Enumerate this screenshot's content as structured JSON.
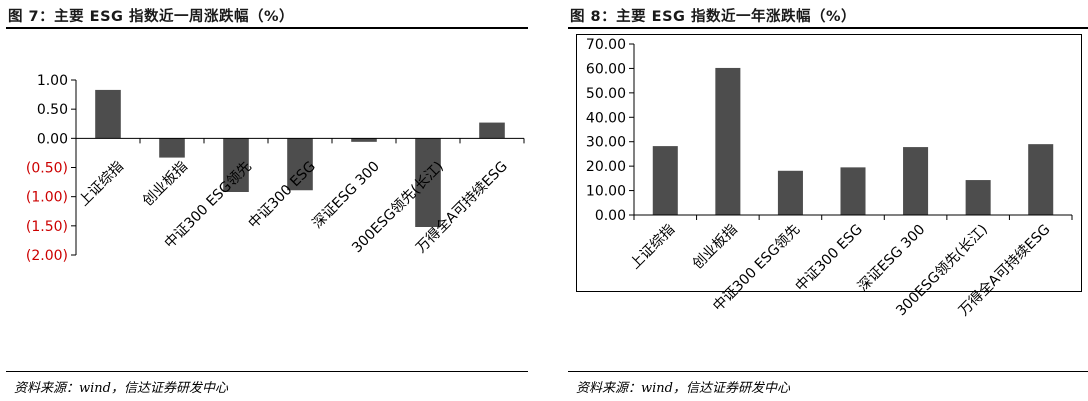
{
  "left": {
    "title": "图 7：主要 ESG 指数近一周涨跌幅（%）",
    "source": "资料来源：wind，信达证券研发中心"
  },
  "right": {
    "title": "图 8：主要 ESG 指数近一年涨跌幅（%）",
    "source": "资料来源：wind，信达证券研发中心"
  },
  "colors": {
    "bar": "#4d4d4d",
    "negative_tick": "#cc0000",
    "axis": "#000000"
  },
  "chart_data": [
    {
      "type": "bar",
      "title": "图 7：主要 ESG 指数近一周涨跌幅（%）",
      "categories": [
        "上证综指",
        "创业板指",
        "中证300 ESG领先",
        "中证300 ESG",
        "深证ESG 300",
        "300ESG领先(长江)",
        "万得全A可持续ESG"
      ],
      "values": [
        0.83,
        -0.33,
        -0.92,
        -0.89,
        -0.06,
        -1.52,
        0.27
      ],
      "ylim": [
        -2,
        1
      ],
      "yticks": [
        1,
        0.5,
        0,
        -0.5,
        -1,
        -1.5,
        -2
      ],
      "ytick_labels": [
        "1.00",
        "0.50",
        "0.00",
        "(0.50)",
        "(1.00)",
        "(1.50)",
        "(2.00)"
      ],
      "grid": false,
      "xlabel": "",
      "ylabel": ""
    },
    {
      "type": "bar",
      "title": "图 8：主要 ESG 指数近一年涨跌幅（%）",
      "categories": [
        "上证综指",
        "创业板指",
        "中证300 ESG领先",
        "中证300 ESG",
        "深证ESG 300",
        "300ESG领先(长江)",
        "万得全A可持续ESG"
      ],
      "values": [
        28.2,
        60.2,
        18.1,
        19.5,
        27.8,
        14.3,
        29.0
      ],
      "ylim": [
        0,
        70
      ],
      "yticks": [
        70,
        60,
        50,
        40,
        30,
        20,
        10,
        0
      ],
      "ytick_labels": [
        "70.00",
        "60.00",
        "50.00",
        "40.00",
        "30.00",
        "20.00",
        "10.00",
        "0.00"
      ],
      "grid": false,
      "xlabel": "",
      "ylabel": ""
    }
  ]
}
